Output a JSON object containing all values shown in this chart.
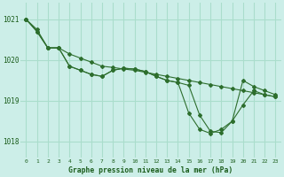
{
  "title": "Graphe pression niveau de la mer (hPa)",
  "background_color": "#cceee8",
  "grid_color": "#aaddcc",
  "line_color": "#2d6e2d",
  "xlim": [
    -0.5,
    23.5
  ],
  "ylim": [
    1017.6,
    1021.4
  ],
  "yticks": [
    1018,
    1019,
    1020,
    1021
  ],
  "xticks": [
    0,
    1,
    2,
    3,
    4,
    5,
    6,
    7,
    8,
    9,
    10,
    11,
    12,
    13,
    14,
    15,
    16,
    17,
    18,
    19,
    20,
    21,
    22,
    23
  ],
  "series": [
    [
      1021.0,
      1020.75,
      1020.3,
      1020.3,
      1020.15,
      1020.05,
      1019.95,
      1019.85,
      1019.82,
      1019.78,
      1019.75,
      1019.7,
      1019.65,
      1019.6,
      1019.55,
      1019.5,
      1019.45,
      1019.4,
      1019.35,
      1019.3,
      1019.25,
      1019.2,
      1019.15,
      1019.1
    ],
    [
      1021.0,
      1020.7,
      1020.3,
      1020.3,
      1019.85,
      1019.75,
      1019.65,
      1019.6,
      1019.75,
      1019.8,
      1019.78,
      1019.72,
      1019.6,
      1019.5,
      1019.45,
      1019.38,
      1018.65,
      1018.25,
      1018.22,
      1018.5,
      1019.5,
      1019.35,
      1019.25,
      1019.15
    ],
    [
      1021.0,
      1020.7,
      1020.3,
      1020.3,
      1019.85,
      1019.75,
      1019.65,
      1019.6,
      1019.75,
      1019.8,
      1019.78,
      1019.72,
      1019.6,
      1019.5,
      1019.45,
      1018.7,
      1018.3,
      1018.2,
      1018.3,
      1018.5,
      1018.9,
      1019.25,
      1019.15,
      1019.1
    ]
  ]
}
